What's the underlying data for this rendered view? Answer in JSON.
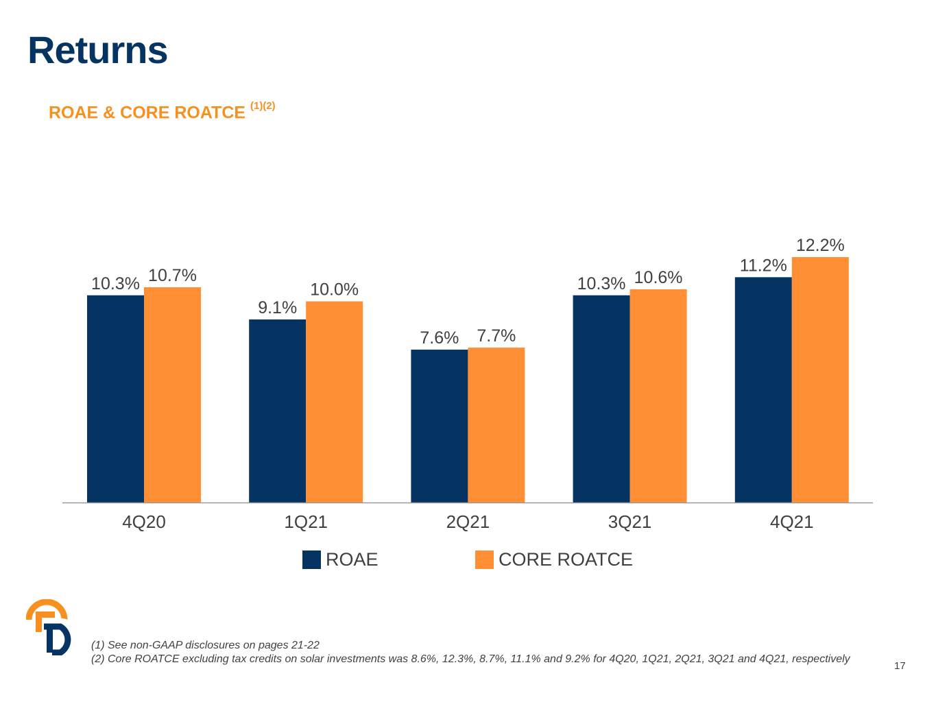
{
  "title": "Returns",
  "chart_title": {
    "text": "ROAE & CORE ROATCE",
    "sup": "(1)(2)"
  },
  "colors": {
    "roae": "#063462",
    "core_roatce": "#ff8e35",
    "title": "#063462",
    "subtitle": "#f7901e"
  },
  "chart_data": {
    "type": "bar",
    "categories": [
      "4Q20",
      "1Q21",
      "2Q21",
      "3Q21",
      "4Q21"
    ],
    "series": [
      {
        "name": "ROAE",
        "values": [
          10.3,
          9.1,
          7.6,
          10.3,
          11.2
        ],
        "labels": [
          "10.3%",
          "9.1%",
          "7.6%",
          "10.3%",
          "11.2%"
        ]
      },
      {
        "name": "CORE ROATCE",
        "values": [
          10.7,
          10.0,
          7.7,
          10.6,
          12.2
        ],
        "labels": [
          "10.7%",
          "10.0%",
          "7.7%",
          "10.6%",
          "12.2%"
        ]
      }
    ],
    "ylim": [
      0,
      12.2
    ],
    "legend": "bottom"
  },
  "legend": [
    {
      "label": "ROAE"
    },
    {
      "label": "CORE ROATCE"
    }
  ],
  "footnotes": [
    "(1) See non-GAAP disclosures on pages 21-22",
    "(2) Core ROATCE excluding tax credits on solar investments was 8.6%, 12.3%, 8.7%, 11.1% and 9.2% for 4Q20, 1Q21, 2Q21, 3Q21 and 4Q21, respectively"
  ],
  "page_number": "17",
  "logo_icon": "bank-logo-icon"
}
